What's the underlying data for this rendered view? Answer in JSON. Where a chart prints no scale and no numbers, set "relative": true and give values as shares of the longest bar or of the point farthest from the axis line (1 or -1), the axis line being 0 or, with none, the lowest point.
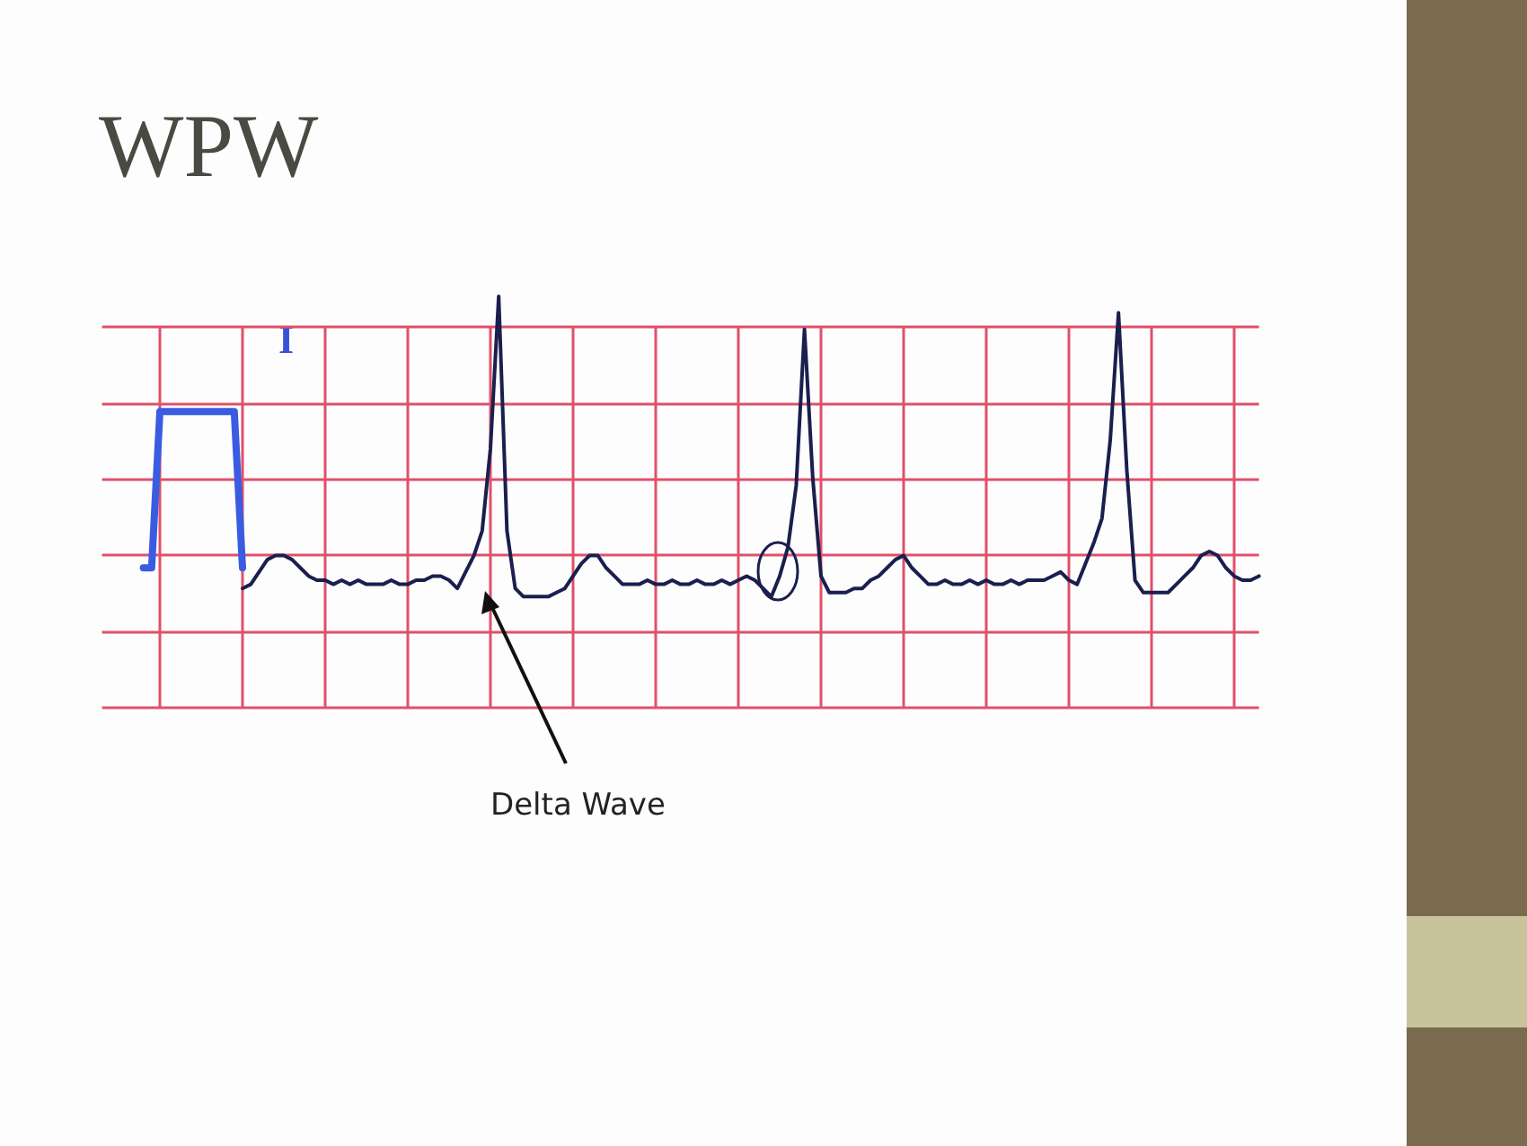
{
  "chart_data": {
    "type": "line",
    "title": "WPW",
    "relative": true,
    "grid": true,
    "marker": "none",
    "annotations": [
      "I",
      "Delta Wave"
    ],
    "categories": [
      null,
      null,
      null,
      null,
      null,
      null,
      null,
      null,
      null,
      null,
      null,
      null,
      null,
      null,
      null,
      null,
      null,
      null,
      null,
      null,
      null,
      null,
      null,
      null,
      null,
      null,
      null,
      null,
      null,
      null,
      null,
      null,
      null,
      null,
      null,
      null,
      null,
      null,
      null,
      null,
      null,
      null,
      null,
      null,
      null,
      null,
      null,
      null,
      null,
      null,
      null,
      null,
      null,
      null,
      null,
      null,
      null,
      null,
      null,
      null,
      null,
      null,
      null,
      null,
      null,
      null,
      null,
      null,
      null,
      null,
      null,
      null,
      null,
      null,
      null,
      null,
      null,
      null,
      null,
      null,
      null,
      null,
      null,
      null,
      null,
      null,
      null,
      null,
      null,
      null,
      null,
      null,
      null,
      null,
      null,
      null,
      null,
      null,
      null,
      null,
      null,
      null,
      null,
      null,
      null,
      null,
      null,
      null,
      null,
      null,
      null,
      null,
      null,
      null,
      null,
      null,
      null,
      null,
      null,
      null,
      null,
      null,
      null,
      null,
      null,
      null,
      null,
      null,
      null,
      null,
      null,
      null,
      null,
      null,
      null,
      null,
      null,
      null,
      null,
      null,
      null
    ],
    "series": [
      {
        "color": "#3a5ce0",
        "values": [
          null,
          null,
          null,
          null,
          null,
          0.34,
          0.34,
          0.72,
          0.72,
          0.72,
          0.72,
          0.72,
          0.72,
          0.72,
          0.72,
          0.72,
          0.72,
          0.34,
          null,
          null,
          null,
          null,
          null,
          null,
          null,
          null,
          null,
          null,
          null,
          null,
          null,
          null,
          null,
          null,
          null,
          null,
          null,
          null,
          null,
          null,
          null,
          null,
          null,
          null,
          null,
          null,
          null,
          null,
          null,
          null,
          null,
          null,
          null,
          null,
          null,
          null,
          null,
          null,
          null,
          null,
          null,
          null,
          null,
          null,
          null,
          null,
          null,
          null,
          null,
          null,
          null,
          null,
          null,
          null,
          null,
          null,
          null,
          null,
          null,
          null,
          null,
          null,
          null,
          null,
          null,
          null,
          null,
          null,
          null,
          null,
          null,
          null,
          null,
          null,
          null,
          null,
          null,
          null,
          null,
          null,
          null,
          null,
          null,
          null,
          null,
          null,
          null,
          null,
          null,
          null,
          null,
          null,
          null,
          null,
          null,
          null,
          null,
          null,
          null,
          null,
          null,
          null,
          null,
          null,
          null,
          null,
          null,
          null,
          null,
          null,
          null,
          null,
          null,
          null,
          null,
          null,
          null,
          null,
          null,
          null,
          null
        ]
      },
      {
        "color": "#1a1f4e",
        "values": [
          null,
          null,
          null,
          null,
          null,
          null,
          null,
          null,
          null,
          null,
          null,
          null,
          null,
          null,
          null,
          null,
          null,
          0.29,
          0.3,
          0.33,
          0.36,
          0.37,
          0.37,
          0.36,
          0.34,
          0.32,
          0.31,
          0.31,
          0.3,
          0.31,
          0.3,
          0.31,
          0.3,
          0.3,
          0.3,
          0.31,
          0.3,
          0.3,
          0.31,
          0.31,
          0.32,
          0.32,
          0.31,
          0.29,
          0.33,
          0.37,
          0.43,
          0.63,
          1,
          0.43,
          0.29,
          0.27,
          0.27,
          0.27,
          0.27,
          0.28,
          0.29,
          0.32,
          0.35,
          0.37,
          0.37,
          0.34,
          0.32,
          0.3,
          0.3,
          0.3,
          0.31,
          0.3,
          0.3,
          0.31,
          0.3,
          0.3,
          0.31,
          0.3,
          0.3,
          0.31,
          0.3,
          0.31,
          0.32,
          0.31,
          0.29,
          0.27,
          0.32,
          0.39,
          0.54,
          0.92,
          0.56,
          0.32,
          0.28,
          0.28,
          0.28,
          0.29,
          0.29,
          0.31,
          0.32,
          0.34,
          0.36,
          0.37,
          0.34,
          0.32,
          0.3,
          0.3,
          0.31,
          0.3,
          0.3,
          0.31,
          0.3,
          0.31,
          0.3,
          0.3,
          0.31,
          0.3,
          0.31,
          0.31,
          0.31,
          0.32,
          0.33,
          0.31,
          0.3,
          0.35,
          0.4,
          0.46,
          0.65,
          0.96,
          0.58,
          0.31,
          0.28,
          0.28,
          0.28,
          0.28,
          0.3,
          0.32,
          0.34,
          0.37,
          0.38,
          0.37,
          0.34,
          0.32,
          0.31,
          0.31,
          0.32
        ]
      }
    ]
  }
}
